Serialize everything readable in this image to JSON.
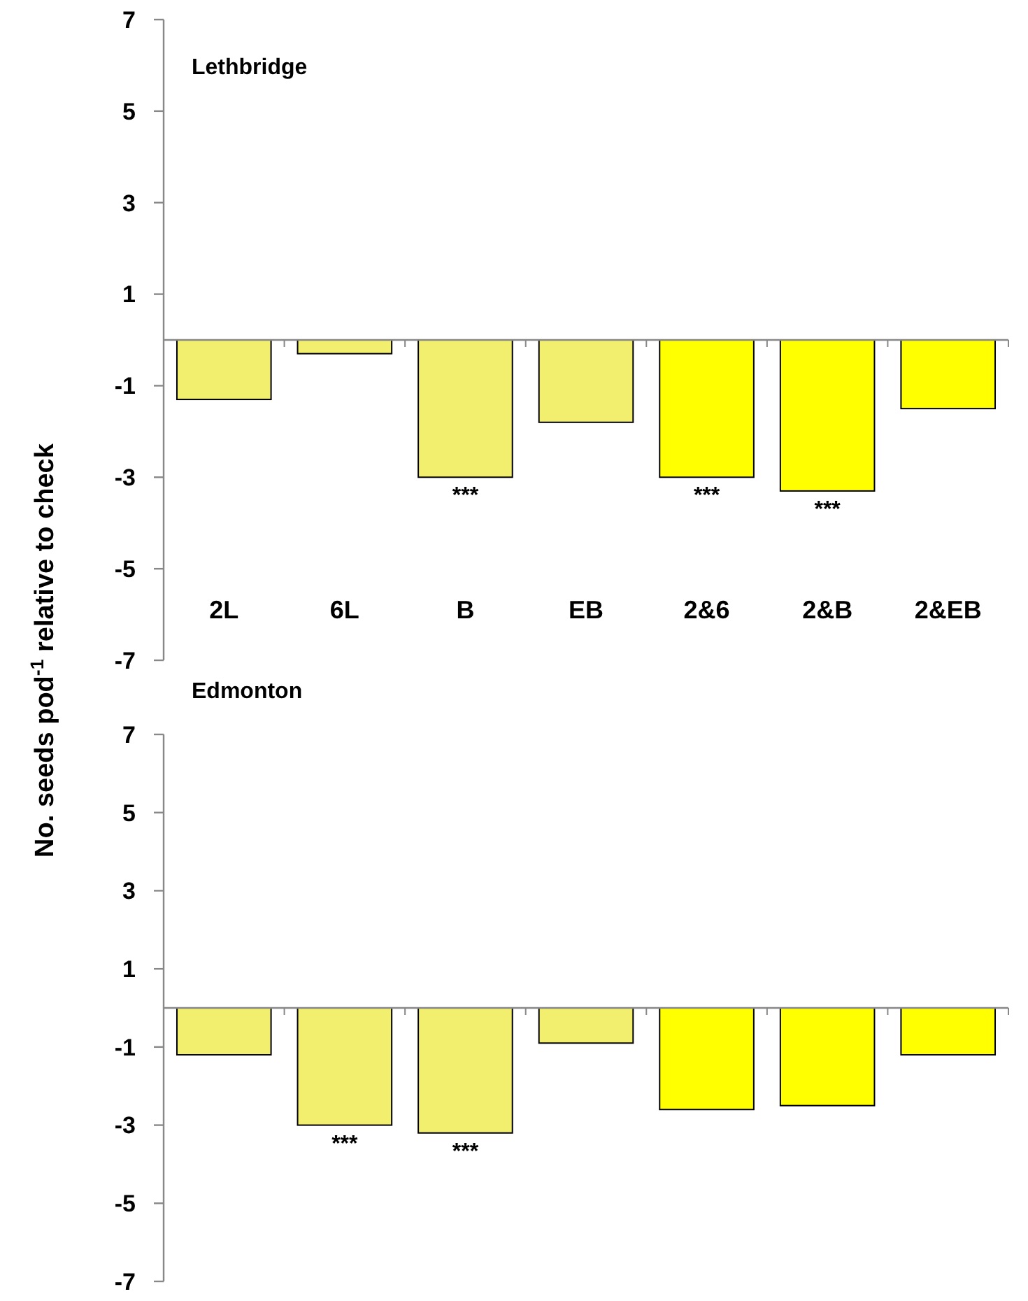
{
  "chart_data": [
    {
      "type": "bar",
      "title": "Lethbridge",
      "ylabel": "No. seeds pod$^{-1}$ relative to check",
      "categories": [
        "2L",
        "6L",
        "B",
        "EB",
        "2&6",
        "2&B",
        "2&EB"
      ],
      "values": [
        -1.3,
        -0.3,
        -3.0,
        -1.8,
        -3.0,
        -3.3,
        -1.5
      ],
      "colors": [
        "#f2ee6e",
        "#f2ee6e",
        "#f2ee6e",
        "#f2ee6e",
        "#ffff00",
        "#ffff00",
        "#ffff00"
      ],
      "ylim": [
        -7,
        7
      ],
      "yticks": [
        -7,
        -5,
        -3,
        -1,
        1,
        3,
        5,
        7
      ],
      "grid": false,
      "annotations": [
        {
          "text": "***",
          "x": "B",
          "y": -3.0
        },
        {
          "text": "***",
          "x": "2&6",
          "y": -3.0
        },
        {
          "text": "***",
          "x": "2&B",
          "y": -3.3
        }
      ]
    },
    {
      "type": "bar",
      "title": "Edmonton",
      "categories": [
        null,
        null,
        null,
        null,
        null,
        null,
        null
      ],
      "values": [
        -1.2,
        -3.0,
        -3.2,
        -0.9,
        -2.6,
        -2.5,
        -1.2
      ],
      "colors": [
        "#f2ee6e",
        "#f2ee6e",
        "#f2ee6e",
        "#f2ee6e",
        "#ffff00",
        "#ffff00",
        "#ffff00"
      ],
      "ylim": [
        -7,
        7
      ],
      "yticks": [
        -7,
        -5,
        -3,
        -1,
        1,
        3,
        5,
        7
      ],
      "grid": false,
      "tick_labels": "y",
      "annotations": [
        {
          "text": "***",
          "y": -3.0
        },
        {
          "text": "***",
          "y": -3.2
        }
      ]
    }
  ]
}
